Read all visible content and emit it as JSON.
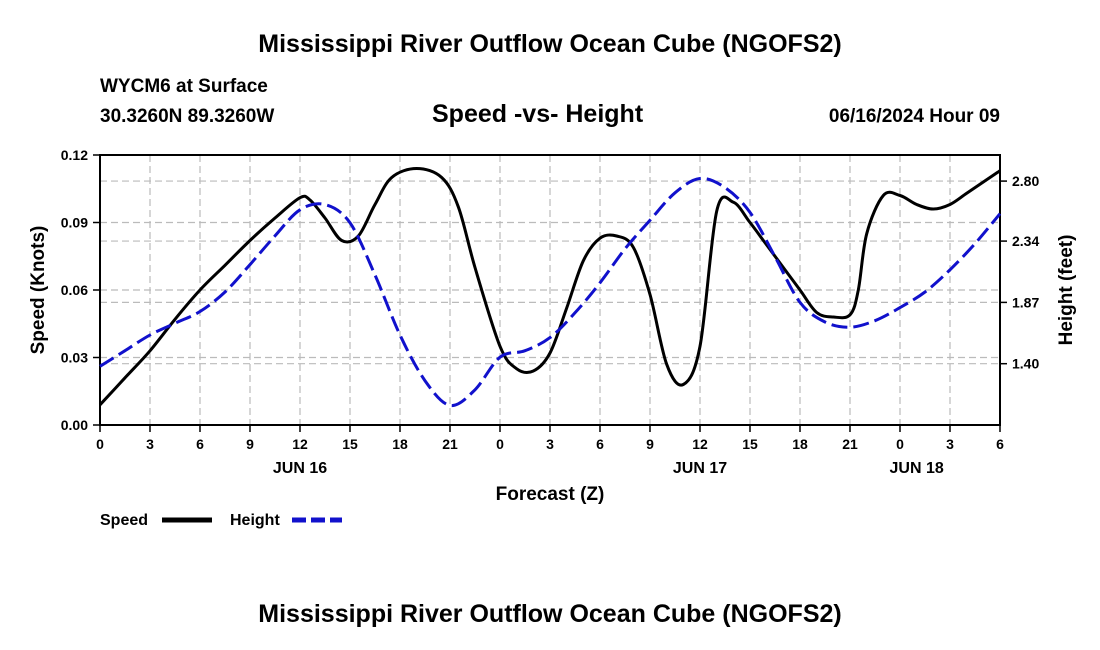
{
  "page": {
    "title": "Mississippi River Outflow Ocean Cube (NGOFS2)",
    "footer_title": "Mississippi River Outflow Ocean Cube (NGOFS2)"
  },
  "station": {
    "name": "WYCM6 at Surface",
    "coords": "30.3260N  89.3260W"
  },
  "subtitle": "Speed -vs- Height",
  "timestamp": "06/16/2024 Hour 09",
  "chart_data": {
    "type": "line",
    "title": "Speed -vs- Height",
    "xlabel": "Forecast (Z)",
    "ylabel": "Speed (Knots)",
    "y2label": "Height (feet)",
    "x_range_hours": [
      0,
      54
    ],
    "x_ticks": [
      {
        "hour": 0,
        "label": "0"
      },
      {
        "hour": 3,
        "label": "3"
      },
      {
        "hour": 6,
        "label": "6"
      },
      {
        "hour": 9,
        "label": "9"
      },
      {
        "hour": 12,
        "label": "12"
      },
      {
        "hour": 15,
        "label": "15"
      },
      {
        "hour": 18,
        "label": "18"
      },
      {
        "hour": 21,
        "label": "21"
      },
      {
        "hour": 24,
        "label": "0"
      },
      {
        "hour": 27,
        "label": "3"
      },
      {
        "hour": 30,
        "label": "6"
      },
      {
        "hour": 33,
        "label": "9"
      },
      {
        "hour": 36,
        "label": "12"
      },
      {
        "hour": 39,
        "label": "15"
      },
      {
        "hour": 42,
        "label": "18"
      },
      {
        "hour": 45,
        "label": "21"
      },
      {
        "hour": 48,
        "label": "0"
      },
      {
        "hour": 51,
        "label": "3"
      },
      {
        "hour": 54,
        "label": "6"
      }
    ],
    "day_labels": [
      {
        "hour": 12,
        "label": "JUN 16"
      },
      {
        "hour": 36,
        "label": "JUN 17"
      },
      {
        "hour": 49,
        "label": "JUN 18"
      }
    ],
    "ylim": [
      0,
      0.12
    ],
    "y_ticks": [
      "0.00",
      "0.03",
      "0.06",
      "0.09",
      "0.12"
    ],
    "y2lim": [
      0.93,
      3.0
    ],
    "y2_ticks": [
      "1.40",
      "1.87",
      "2.34",
      "2.80"
    ],
    "series": [
      {
        "name": "Speed",
        "axis": "left",
        "color": "#000000",
        "style": "solid",
        "x": [
          0,
          1.5,
          3,
          4.5,
          6,
          7.5,
          9,
          10.5,
          12,
          12.6,
          13.5,
          14.5,
          15.5,
          16.5,
          17.5,
          19,
          20.5,
          21.5,
          22.5,
          24,
          25,
          26,
          27,
          28,
          29,
          30,
          31,
          32,
          33,
          34,
          35,
          36,
          37,
          38,
          39,
          40,
          41,
          42,
          43,
          44,
          45,
          45.5,
          46,
          47,
          48,
          49,
          50,
          51,
          52,
          53,
          54
        ],
        "y": [
          0.009,
          0.021,
          0.033,
          0.047,
          0.06,
          0.071,
          0.082,
          0.092,
          0.101,
          0.1,
          0.092,
          0.082,
          0.084,
          0.098,
          0.11,
          0.114,
          0.11,
          0.097,
          0.07,
          0.035,
          0.025,
          0.024,
          0.032,
          0.052,
          0.073,
          0.083,
          0.084,
          0.079,
          0.058,
          0.027,
          0.018,
          0.035,
          0.095,
          0.099,
          0.09,
          0.08,
          0.07,
          0.06,
          0.05,
          0.048,
          0.049,
          0.06,
          0.085,
          0.102,
          0.102,
          0.098,
          0.096,
          0.098,
          0.103,
          0.108,
          0.113
        ]
      },
      {
        "name": "Height",
        "axis": "right",
        "color": "#1111cc",
        "style": "dashed",
        "x": [
          0,
          1.5,
          3,
          4.5,
          6,
          7.5,
          9,
          10.5,
          12,
          13.5,
          15,
          16.5,
          18,
          19.5,
          21,
          22.5,
          24,
          25.5,
          27,
          28.5,
          30,
          31.5,
          33,
          34.5,
          36,
          37.5,
          39,
          40.5,
          42,
          43.5,
          45,
          46.5,
          48,
          49.5,
          51,
          52.5,
          54
        ],
        "y": [
          1.38,
          1.5,
          1.62,
          1.71,
          1.8,
          1.95,
          2.16,
          2.38,
          2.58,
          2.62,
          2.48,
          2.08,
          1.62,
          1.27,
          1.08,
          1.2,
          1.45,
          1.5,
          1.6,
          1.79,
          2.02,
          2.28,
          2.5,
          2.71,
          2.82,
          2.75,
          2.56,
          2.22,
          1.87,
          1.72,
          1.68,
          1.73,
          1.83,
          1.95,
          2.12,
          2.32,
          2.55
        ]
      }
    ],
    "legend_position": "bottom-left"
  },
  "legend": [
    {
      "label": "Speed",
      "color": "#000000",
      "style": "solid"
    },
    {
      "label": "Height",
      "color": "#1111cc",
      "style": "dashed"
    }
  ]
}
